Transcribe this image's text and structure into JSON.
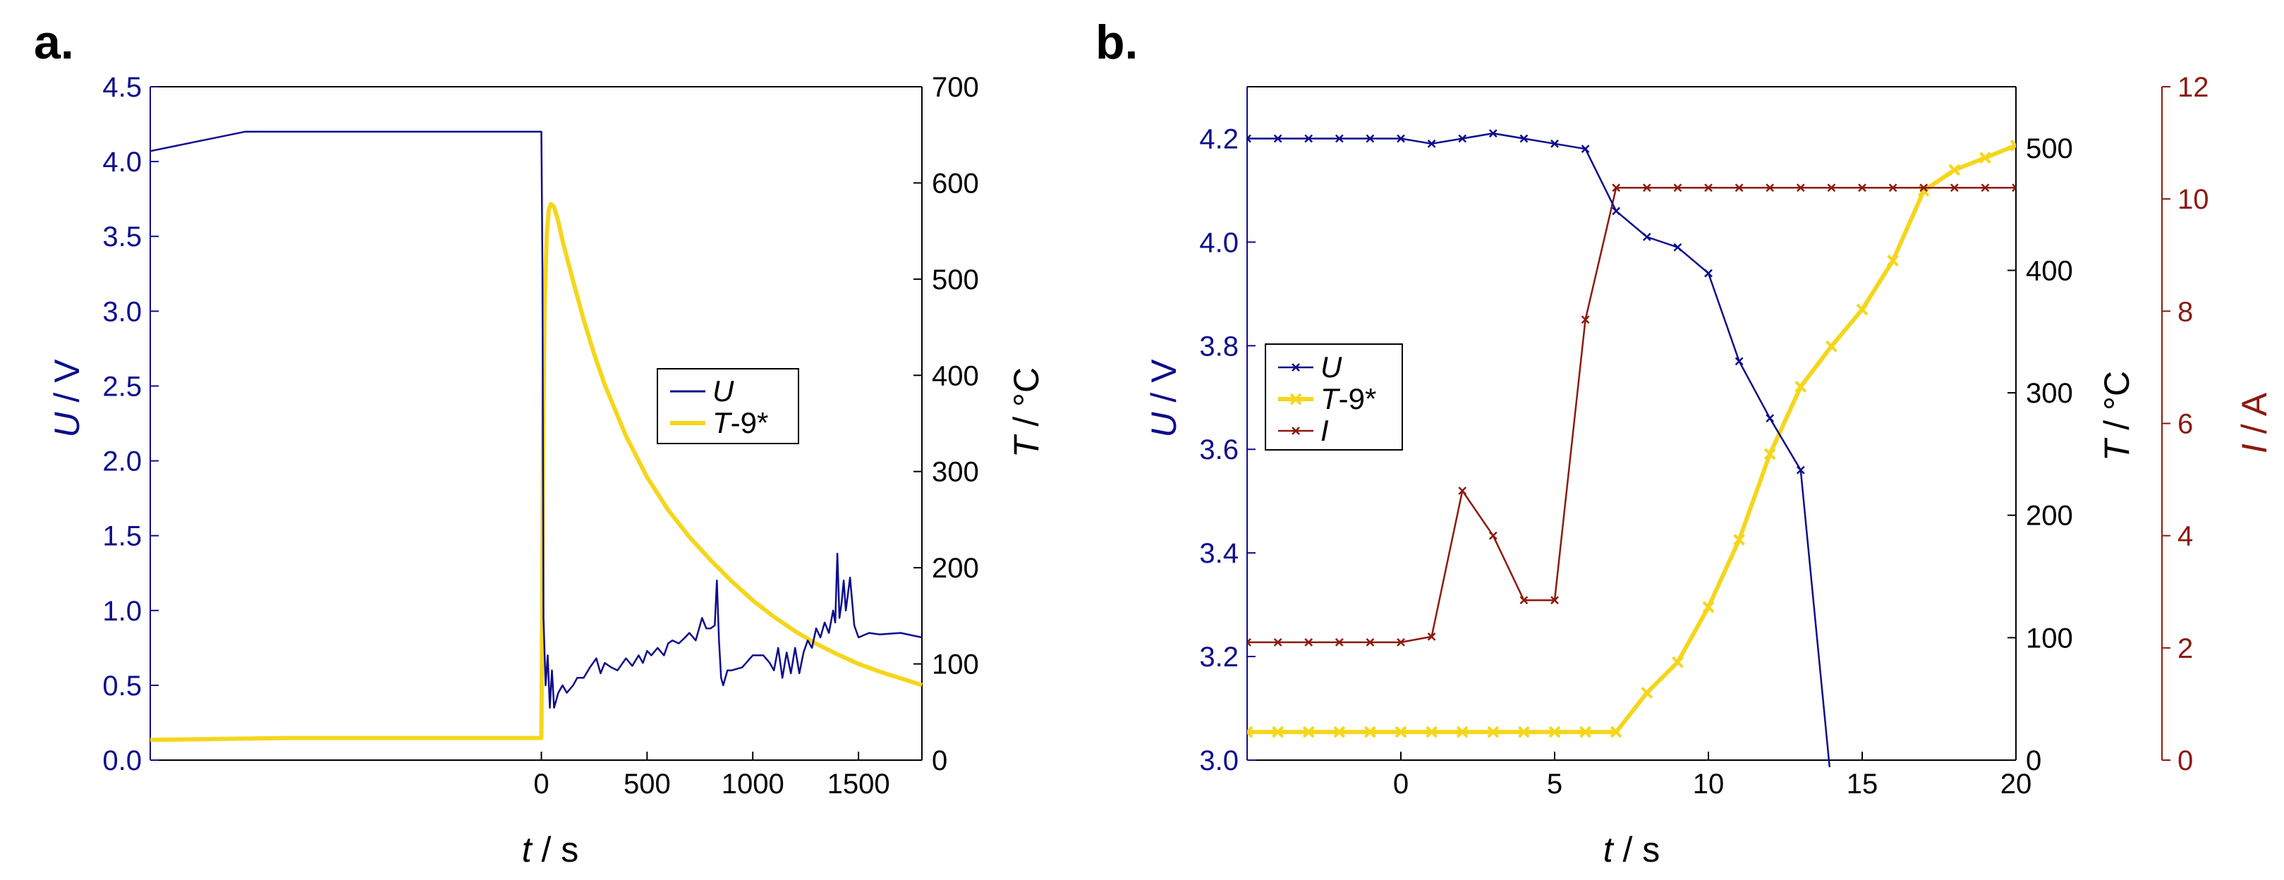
{
  "colors": {
    "voltage": "#0d0d8c",
    "temperature": "#f5d61c",
    "current": "#8b1a0e",
    "axis_black": "#000000"
  },
  "chart_data": [
    {
      "panel_label": "a.",
      "type": "line",
      "xlabel": "t / s",
      "xlabel_parts": {
        "var": "t",
        "unit": " / s"
      },
      "ylabel_left": "U / V",
      "ylabel_left_parts": {
        "var": "U",
        "unit": " / V"
      },
      "ylabel_right": "T / °C",
      "ylabel_right_parts": {
        "var": "T",
        "unit": " / °C"
      },
      "xlim": [
        -1850,
        1800
      ],
      "xticks": [
        0,
        500,
        1000,
        1500
      ],
      "xtick_labels": [
        "0",
        "500",
        "1000",
        "1500"
      ],
      "ylim_left": [
        0,
        4.5
      ],
      "yticks_left": [
        0,
        0.5,
        1.0,
        1.5,
        2.0,
        2.5,
        3.0,
        3.5,
        4.0,
        4.5
      ],
      "ytick_labels_left": [
        "0.0",
        "0.5",
        "1.0",
        "1.5",
        "2.0",
        "2.5",
        "3.0",
        "3.5",
        "4.0",
        "4.5"
      ],
      "ylim_right": [
        0,
        700
      ],
      "yticks_right": [
        0,
        100,
        200,
        300,
        400,
        500,
        600,
        700
      ],
      "ytick_labels_right": [
        "0",
        "100",
        "200",
        "300",
        "400",
        "500",
        "600",
        "700"
      ],
      "legend": {
        "placement": "center-right",
        "entries": [
          {
            "var": "U",
            "suffix": ""
          },
          {
            "var": "T",
            "suffix": "-9*"
          }
        ]
      },
      "series": [
        {
          "name": "U",
          "axis": "left",
          "x": [
            -1850,
            -1400,
            -1200,
            -800,
            -400,
            -100,
            -10,
            0,
            5,
            10,
            20,
            30,
            40,
            50,
            60,
            80,
            100,
            120,
            150,
            170,
            200,
            230,
            260,
            280,
            300,
            330,
            360,
            400,
            430,
            460,
            480,
            500,
            520,
            550,
            580,
            600,
            620,
            650,
            680,
            700,
            730,
            760,
            780,
            800,
            820,
            830,
            840,
            850,
            860,
            880,
            900,
            950,
            1000,
            1050,
            1080,
            1100,
            1120,
            1140,
            1160,
            1180,
            1200,
            1220,
            1240,
            1260,
            1280,
            1300,
            1320,
            1340,
            1360,
            1380,
            1390,
            1400,
            1410,
            1420,
            1430,
            1440,
            1460,
            1480,
            1500,
            1550,
            1600,
            1700,
            1800
          ],
          "y": [
            4.07,
            4.2,
            4.2,
            4.2,
            4.2,
            4.2,
            4.2,
            4.2,
            3.3,
            0.95,
            0.5,
            0.7,
            0.35,
            0.6,
            0.35,
            0.45,
            0.5,
            0.45,
            0.5,
            0.55,
            0.55,
            0.62,
            0.68,
            0.58,
            0.65,
            0.62,
            0.6,
            0.68,
            0.63,
            0.7,
            0.65,
            0.73,
            0.7,
            0.75,
            0.7,
            0.78,
            0.8,
            0.78,
            0.82,
            0.85,
            0.8,
            0.95,
            0.88,
            0.88,
            0.9,
            1.2,
            0.8,
            0.55,
            0.5,
            0.6,
            0.6,
            0.62,
            0.7,
            0.7,
            0.65,
            0.6,
            0.75,
            0.55,
            0.72,
            0.58,
            0.75,
            0.58,
            0.72,
            0.8,
            0.75,
            0.88,
            0.82,
            0.92,
            0.85,
            1.0,
            0.92,
            1.38,
            0.95,
            1.05,
            1.2,
            1.0,
            1.22,
            0.9,
            0.82,
            0.85,
            0.84,
            0.85,
            0.82
          ]
        },
        {
          "name": "T-9*",
          "axis": "right",
          "x": [
            -1850,
            -1200,
            -800,
            -400,
            -50,
            -10,
            0,
            3,
            8,
            15,
            25,
            35,
            45,
            60,
            80,
            100,
            150,
            200,
            250,
            300,
            400,
            500,
            600,
            700,
            800,
            900,
            1000,
            1100,
            1200,
            1300,
            1400,
            1500,
            1600,
            1700,
            1800
          ],
          "y": [
            21,
            23,
            23,
            23,
            23,
            23,
            23,
            120,
            330,
            470,
            545,
            572,
            578,
            575,
            560,
            540,
            498,
            458,
            422,
            390,
            337,
            294,
            260,
            232,
            208,
            186,
            166,
            149,
            134,
            121,
            110,
            100,
            92,
            85,
            78
          ]
        }
      ]
    },
    {
      "panel_label": "b.",
      "type": "line",
      "xlabel": "t / s",
      "xlabel_parts": {
        "var": "t",
        "unit": " / s"
      },
      "ylabel_left": "U / V",
      "ylabel_left_parts": {
        "var": "U",
        "unit": " / V"
      },
      "ylabel_mid": "T / °C",
      "ylabel_mid_parts": {
        "var": "T",
        "unit": " / °C"
      },
      "ylabel_right": "I / A",
      "ylabel_right_parts": {
        "var": "I",
        "unit": " / A"
      },
      "xlim": [
        -5,
        20
      ],
      "xticks": [
        0,
        5,
        10,
        15,
        20
      ],
      "xtick_labels": [
        "0",
        "5",
        "10",
        "15",
        "20"
      ],
      "ylim_left": [
        3.0,
        4.3
      ],
      "yticks_left": [
        3.0,
        3.2,
        3.4,
        3.6,
        3.8,
        4.0,
        4.2
      ],
      "ytick_labels_left": [
        "3.0",
        "3.2",
        "3.4",
        "3.6",
        "3.8",
        "4.0",
        "4.2"
      ],
      "ylim_mid": [
        0,
        550
      ],
      "yticks_mid": [
        0,
        100,
        200,
        300,
        400,
        500
      ],
      "ytick_labels_mid": [
        "0",
        "100",
        "200",
        "300",
        "400",
        "500"
      ],
      "ylim_right": [
        0,
        12
      ],
      "yticks_right": [
        0,
        2,
        4,
        6,
        8,
        10,
        12
      ],
      "ytick_labels_right": [
        "0",
        "2",
        "4",
        "6",
        "8",
        "10",
        "12"
      ],
      "legend": {
        "placement": "center-left",
        "entries": [
          {
            "var": "U",
            "suffix": ""
          },
          {
            "var": "T",
            "suffix": "-9*"
          },
          {
            "var": "I",
            "suffix": ""
          }
        ]
      },
      "series": [
        {
          "name": "U",
          "axis": "left",
          "marker": "x",
          "x": [
            -5,
            -4,
            -3,
            -2,
            -1,
            0,
            1,
            2,
            3,
            4,
            5,
            6,
            7,
            8,
            9,
            10,
            11,
            12,
            13,
            14
          ],
          "y": [
            4.2,
            4.2,
            4.2,
            4.2,
            4.2,
            4.2,
            4.19,
            4.2,
            4.21,
            4.2,
            4.19,
            4.18,
            4.06,
            4.01,
            3.99,
            3.94,
            3.77,
            3.66,
            3.56,
            2.95
          ]
        },
        {
          "name": "T-9*",
          "axis": "mid",
          "marker": "x",
          "x": [
            -5,
            -4,
            -3,
            -2,
            -1,
            0,
            1,
            2,
            3,
            4,
            5,
            6,
            7,
            8,
            9,
            10,
            11,
            12,
            13,
            14,
            15,
            16,
            17,
            18,
            19,
            20
          ],
          "y": [
            23,
            23,
            23,
            23,
            23,
            23,
            23,
            23,
            23,
            23,
            23,
            23,
            23,
            55,
            80,
            125,
            180,
            250,
            305,
            338,
            368,
            408,
            465,
            482,
            492,
            502
          ]
        },
        {
          "name": "I",
          "axis": "right",
          "marker": "x",
          "x": [
            -5,
            -4,
            -3,
            -2,
            -1,
            0,
            1,
            2,
            3,
            4,
            5,
            6,
            7,
            8,
            9,
            10,
            11,
            12,
            13,
            14,
            15,
            16,
            17,
            18,
            19,
            20
          ],
          "y": [
            2.1,
            2.1,
            2.1,
            2.1,
            2.1,
            2.1,
            2.2,
            4.8,
            4.0,
            2.85,
            2.85,
            7.85,
            10.2,
            10.2,
            10.2,
            10.2,
            10.2,
            10.2,
            10.2,
            10.2,
            10.2,
            10.2,
            10.2,
            10.2,
            10.2,
            10.2
          ]
        }
      ]
    }
  ]
}
